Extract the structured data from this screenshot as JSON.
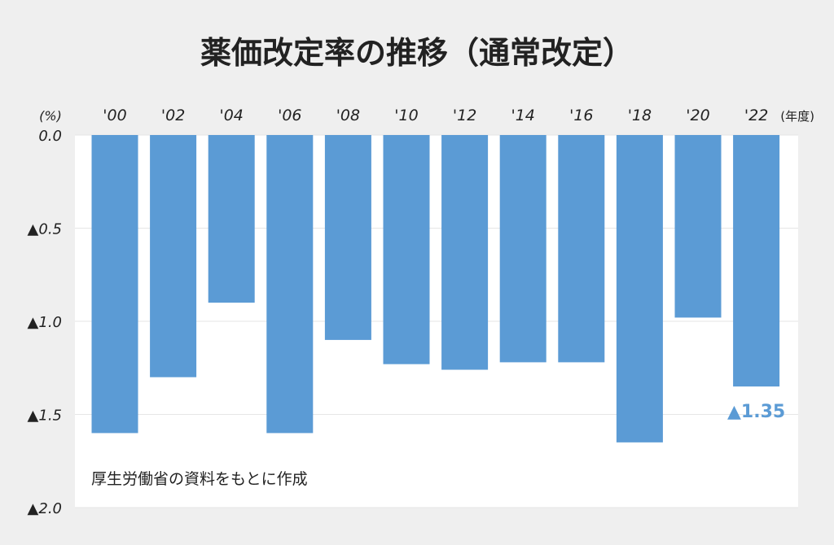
{
  "chart_data": {
    "type": "bar",
    "title": "薬価改定率の推移（通常改定）",
    "y_unit_label": "(%)",
    "x_unit_label": "(年度)",
    "categories": [
      "'00",
      "'02",
      "'04",
      "'06",
      "'08",
      "'10",
      "'12",
      "'14",
      "'16",
      "'18",
      "'20",
      "'22"
    ],
    "values": [
      -1.6,
      -1.3,
      -0.9,
      -1.6,
      -1.1,
      -1.23,
      -1.26,
      -1.22,
      -1.22,
      -1.65,
      -0.98,
      -1.35
    ],
    "ylim": [
      -2.0,
      0.0
    ],
    "y_ticks": [
      {
        "value": 0.0,
        "label": "0.0"
      },
      {
        "value": -0.5,
        "label": "▲0.5"
      },
      {
        "value": -1.0,
        "label": "▲1.0"
      },
      {
        "value": -1.5,
        "label": "▲1.5"
      },
      {
        "value": -2.0,
        "label": "▲2.0"
      }
    ],
    "data_labels": [
      {
        "index": 11,
        "text": "▲1.35"
      }
    ],
    "source_note": "厚生労働省の資料をもとに作成",
    "grid": true,
    "colors": {
      "bar": "#5b9bd5",
      "label": "#5b9bd5",
      "plot_bg": "#ffffff",
      "page_bg": "#efefef",
      "grid": "#e6e6e6",
      "text": "#222222"
    }
  }
}
